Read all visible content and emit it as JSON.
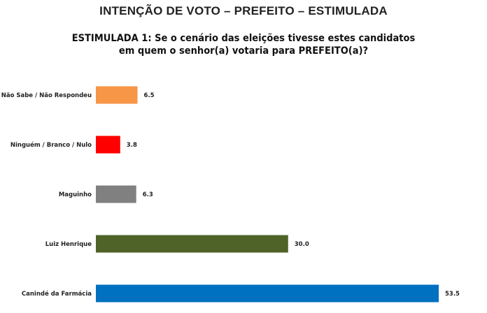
{
  "chart_data": {
    "type": "bar",
    "orientation": "horizontal",
    "title": "INTENÇÃO DE VOTO – PREFEITO – ESTIMULADA",
    "subtitle": "ESTIMULADA 1: Se o cenário das eleições tivesse estes candidatos em quem o senhor(a) votaria para PREFEITO(a)?",
    "categories": [
      "Não Sabe / Não Respondeu",
      "Ninguém / Branco / Nulo",
      "Maguinho",
      "Luiz Henrique",
      "Canindé da Farmácia"
    ],
    "values": [
      6.5,
      3.8,
      6.3,
      30.0,
      53.5
    ],
    "value_labels": [
      "6.5",
      "3.8",
      "6.3",
      "30.0",
      "53.5"
    ],
    "colors": [
      "#f79646",
      "#ff0000",
      "#808080",
      "#4f6228",
      "#0070c0"
    ],
    "xlabel": "",
    "ylabel": "",
    "xlim": [
      0,
      53.5
    ],
    "grid": false,
    "legend": "none"
  }
}
